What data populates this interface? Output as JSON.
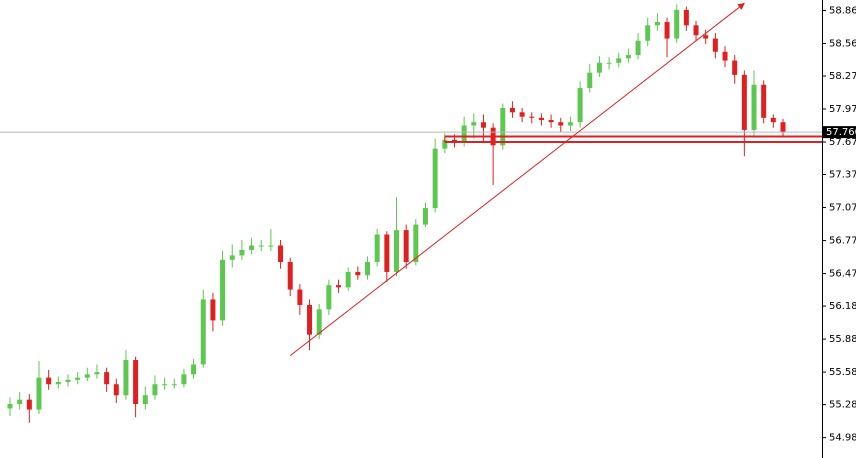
{
  "chart_data": {
    "type": "candlestick",
    "open": [
      55.25,
      55.29,
      55.33,
      55.24,
      55.53,
      55.47,
      55.49,
      55.51,
      55.53,
      55.56,
      55.58,
      55.47,
      55.37,
      55.69,
      55.29,
      55.37,
      55.47,
      55.47,
      55.47,
      55.56,
      55.65,
      56.24,
      56.05,
      56.6,
      56.64,
      56.69,
      56.73,
      56.73,
      56.73,
      56.58,
      56.33,
      56.19,
      55.92,
      56.15,
      56.37,
      56.35,
      56.49,
      56.46,
      56.58,
      56.83,
      56.49,
      56.87,
      56.58,
      56.92,
      57.07,
      57.61,
      57.69,
      57.67,
      57.82,
      57.85,
      57.8,
      57.64,
      57.98,
      57.94,
      57.9,
      57.89,
      57.87,
      57.85,
      57.82,
      57.85,
      58.16,
      58.3,
      58.39,
      58.39,
      58.43,
      58.46,
      58.59,
      58.73,
      58.76,
      58.61,
      58.87,
      58.73,
      58.64,
      58.61,
      58.49,
      58.41,
      58.28,
      57.78,
      58.19,
      57.89,
      57.85
    ],
    "high": [
      55.35,
      55.4,
      55.38,
      55.68,
      55.6,
      55.54,
      55.56,
      55.58,
      55.62,
      55.65,
      55.62,
      55.52,
      55.78,
      55.72,
      55.45,
      55.55,
      55.53,
      55.52,
      55.61,
      55.7,
      56.33,
      56.3,
      56.68,
      56.74,
      56.78,
      56.8,
      56.78,
      56.88,
      56.78,
      56.62,
      56.38,
      56.24,
      56.2,
      56.42,
      56.42,
      56.53,
      56.54,
      56.63,
      56.88,
      56.86,
      57.17,
      56.92,
      56.97,
      57.12,
      57.7,
      57.75,
      57.74,
      57.9,
      57.93,
      57.92,
      57.84,
      58.02,
      58.04,
      57.98,
      57.94,
      57.93,
      57.92,
      57.89,
      57.9,
      58.22,
      58.38,
      58.45,
      58.44,
      58.48,
      58.52,
      58.66,
      58.8,
      58.84,
      58.8,
      58.92,
      58.9,
      58.77,
      58.69,
      58.66,
      58.54,
      58.46,
      58.32,
      58.32,
      58.23,
      57.92,
      57.88
    ],
    "low": [
      55.18,
      55.24,
      55.12,
      55.2,
      55.42,
      55.43,
      55.45,
      55.47,
      55.5,
      55.52,
      55.4,
      55.3,
      55.33,
      55.17,
      55.24,
      55.33,
      55.42,
      55.43,
      55.44,
      55.52,
      55.62,
      55.95,
      56.0,
      56.53,
      56.6,
      56.65,
      56.68,
      56.68,
      56.52,
      56.27,
      56.1,
      55.78,
      55.88,
      56.1,
      56.3,
      56.32,
      56.42,
      56.42,
      56.54,
      56.4,
      56.45,
      56.52,
      56.55,
      56.9,
      57.03,
      57.57,
      57.62,
      57.63,
      57.7,
      57.66,
      57.28,
      57.6,
      57.89,
      57.85,
      57.84,
      57.82,
      57.8,
      57.76,
      57.77,
      57.8,
      58.12,
      58.26,
      58.33,
      58.35,
      58.39,
      58.42,
      58.54,
      58.68,
      58.44,
      58.57,
      58.68,
      58.59,
      58.56,
      58.43,
      58.35,
      58.2,
      57.54,
      57.72,
      57.84,
      57.8,
      57.72
    ],
    "close": [
      55.29,
      55.33,
      55.24,
      55.53,
      55.47,
      55.49,
      55.51,
      55.53,
      55.56,
      55.58,
      55.47,
      55.37,
      55.69,
      55.29,
      55.37,
      55.47,
      55.47,
      55.47,
      55.56,
      55.65,
      56.24,
      56.05,
      56.6,
      56.64,
      56.69,
      56.73,
      56.73,
      56.73,
      56.58,
      56.33,
      56.19,
      55.92,
      56.15,
      56.37,
      56.35,
      56.49,
      56.46,
      56.58,
      56.83,
      56.49,
      56.87,
      56.58,
      56.92,
      57.07,
      57.61,
      57.69,
      57.67,
      57.82,
      57.85,
      57.8,
      57.64,
      57.98,
      57.94,
      57.9,
      57.89,
      57.87,
      57.85,
      57.82,
      57.85,
      58.16,
      58.3,
      58.39,
      58.39,
      58.43,
      58.46,
      58.59,
      58.73,
      58.76,
      58.61,
      58.87,
      58.73,
      58.64,
      58.61,
      58.49,
      58.41,
      58.28,
      57.78,
      58.19,
      57.89,
      57.85,
      57.76
    ],
    "up_color": "#5cc84f",
    "down_color": "#e02020",
    "ylim": [
      54.8,
      58.96
    ],
    "yticks": [
      58.865,
      58.565,
      {
        "value": 58.27,
        "label": "58.270"
      },
      {
        "value": 57.97,
        "label": "57.970"
      },
      {
        "value": 57.67,
        "label": "57.670"
      },
      57.375,
      57.075,
      56.775,
      56.475,
      {
        "value": 56.18,
        "label": "56.180"
      },
      {
        "value": 55.88,
        "label": "55.880"
      },
      {
        "value": 55.58,
        "label": "55.580"
      },
      55.285,
      54.985
    ],
    "last_price": {
      "value": 57.76,
      "label": "57.760"
    },
    "trendline": {
      "x": [
        29,
        76
      ],
      "y": [
        55.73,
        58.93
      ],
      "color": "#e02020"
    },
    "zone": {
      "x_start": 45,
      "low": 57.67,
      "high": 57.72,
      "color": "#e02020"
    }
  }
}
